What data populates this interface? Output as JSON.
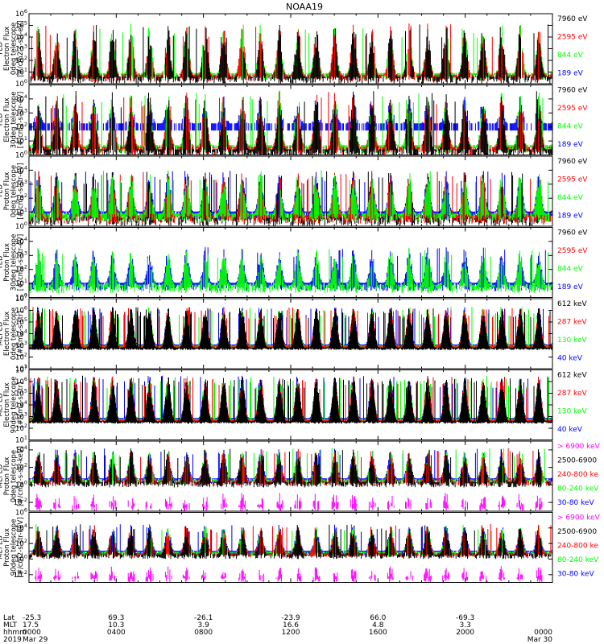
{
  "title": "NOAA19",
  "colors": {
    "black": "#000000",
    "red": "#ff0000",
    "green": "#00ff00",
    "blue": "#0000ff",
    "magenta": "#ff00ff",
    "axis": "#000000"
  },
  "chart_data": [
    {
      "type": "line",
      "panel": "ted-electron-0deg",
      "ylabel": [
        "TED",
        "Electron Flux",
        "0deg telescope",
        "[#/cm2-s-str-eV]"
      ],
      "log_scale": true,
      "ylim_exp": [
        0,
        6
      ],
      "tick_exps": [
        0,
        1,
        2,
        3,
        4,
        5,
        6
      ],
      "baseline_exp": 0.6,
      "peak_exp": 5.2,
      "dense": false,
      "series": [
        {
          "name": "7960 eV",
          "color": "black"
        },
        {
          "name": "2595 eV",
          "color": "red"
        },
        {
          "name": "844 eV",
          "color": "green"
        },
        {
          "name": "189 eV",
          "color": "blue"
        }
      ],
      "draw_order": [
        "green",
        "red",
        "black"
      ]
    },
    {
      "type": "line",
      "panel": "ted-electron-30deg",
      "ylabel": [
        "TED",
        "Electron Flux",
        "30deg telescope",
        "[#/cm2-s-str-eV]"
      ],
      "log_scale": true,
      "ylim_exp": [
        0,
        5
      ],
      "tick_exps": [
        0,
        1,
        2,
        3,
        4
      ],
      "baseline_exp": 0.4,
      "peak_exp": 4.6,
      "dense": false,
      "blue_band_exp": 2,
      "series": [
        {
          "name": "7960 eV",
          "color": "black"
        },
        {
          "name": "2595 eV",
          "color": "red"
        },
        {
          "name": "844 eV",
          "color": "green"
        },
        {
          "name": "189 eV",
          "color": "blue"
        }
      ],
      "draw_order": [
        "blue",
        "green",
        "red",
        "black"
      ]
    },
    {
      "type": "line",
      "panel": "ted-proton-0deg",
      "ylabel": [
        "TED",
        "Proton Flux",
        "0deg telescope",
        "[#/cm2-s-str-eV]"
      ],
      "log_scale": true,
      "ylim_exp": [
        0,
        5
      ],
      "tick_exps": [
        0,
        1,
        2,
        3,
        4
      ],
      "baseline_exp": 0.6,
      "peak_exp": 4.0,
      "dense": false,
      "series": [
        {
          "name": "7960 eV",
          "color": "black"
        },
        {
          "name": "2595 eV",
          "color": "red"
        },
        {
          "name": "844 eV",
          "color": "green"
        },
        {
          "name": "189 eV",
          "color": "blue"
        }
      ],
      "draw_order": [
        "blue",
        "black",
        "red",
        "green"
      ]
    },
    {
      "type": "line",
      "panel": "ted-proton-30deg",
      "ylabel": [
        "TED",
        "Proton Flux",
        "30deg telescope",
        "[#/cm2-s-str-eV]"
      ],
      "log_scale": true,
      "ylim_exp": [
        0,
        5
      ],
      "tick_exps": [
        0,
        1,
        2,
        3,
        4
      ],
      "baseline_exp": 0.6,
      "peak_exp": 3.6,
      "dense": false,
      "series": [
        {
          "name": "7960 eV",
          "color": "black"
        },
        {
          "name": "2595 eV",
          "color": "red"
        },
        {
          "name": "844 eV",
          "color": "green"
        },
        {
          "name": "189 eV",
          "color": "blue"
        }
      ],
      "draw_order": [
        "blue",
        "green"
      ]
    },
    {
      "type": "line",
      "panel": "meped-electron-0deg",
      "ylabel": [
        "MEPED",
        "Electron Flux",
        "0deg telescope",
        "[#/cm2-s-str]"
      ],
      "log_scale": true,
      "ylim_exp": [
        1,
        7
      ],
      "tick_exps": [
        1,
        2,
        3,
        4,
        5,
        6,
        7
      ],
      "baseline_exp": 2.8,
      "peak_exp": 6.3,
      "dense": true,
      "series": [
        {
          "name": "612 keV",
          "color": "black"
        },
        {
          "name": "287 keV",
          "color": "red"
        },
        {
          "name": "130 keV",
          "color": "green"
        },
        {
          "name": "40 keV",
          "color": "blue"
        }
      ],
      "draw_order": [
        "blue",
        "green",
        "red",
        "black"
      ]
    },
    {
      "type": "line",
      "panel": "meped-electron-90deg",
      "ylabel": [
        "MEPED",
        "Electron Flux",
        "90deg telescope",
        "[#/cm2-s-str]"
      ],
      "log_scale": true,
      "ylim_exp": [
        1,
        7
      ],
      "tick_exps": [
        1,
        2,
        3,
        4,
        5,
        6,
        7
      ],
      "baseline_exp": 2.6,
      "peak_exp": 6.5,
      "dense": true,
      "series": [
        {
          "name": "612 keV",
          "color": "black"
        },
        {
          "name": "287 keV",
          "color": "red"
        },
        {
          "name": "130 keV",
          "color": "green"
        },
        {
          "name": "40 keV",
          "color": "blue"
        }
      ],
      "draw_order": [
        "blue",
        "green",
        "red",
        "black"
      ]
    },
    {
      "type": "line",
      "panel": "meped-proton-0deg",
      "ylabel": [
        "MEPED",
        "Proton Flux",
        "0deg telescope",
        "[#/cm2-s-str-keV]"
      ],
      "log_scale": true,
      "ylim_exp": [
        -3,
        5
      ],
      "tick_exps": [
        -2,
        0,
        2,
        4
      ],
      "baseline_exp": 0.3,
      "peak_exp": 4.2,
      "dense": false,
      "series": [
        {
          "name": "> 6900 keV",
          "color": "magenta"
        },
        {
          "name": "2500-6900",
          "color": "black"
        },
        {
          "name": "240-800 ke",
          "color": "red"
        },
        {
          "name": "80-240 keV",
          "color": "green"
        },
        {
          "name": "30-80 keV",
          "color": "blue"
        }
      ],
      "draw_order": [
        "blue",
        "green",
        "red",
        "magenta",
        "black"
      ]
    },
    {
      "type": "line",
      "panel": "meped-proton-90deg",
      "ylabel": [
        "MEPED",
        "Proton Flux",
        "90deg telescope",
        "[#/cm2-s-str-keV]"
      ],
      "log_scale": true,
      "ylim_exp": [
        -3,
        6
      ],
      "tick_exps": [
        -2,
        0,
        2,
        4,
        6
      ],
      "baseline_exp": 0.6,
      "peak_exp": 4.5,
      "dense": false,
      "series": [
        {
          "name": "> 6900 keV",
          "color": "magenta"
        },
        {
          "name": "2500-6900",
          "color": "black"
        },
        {
          "name": "240-800 ke",
          "color": "red"
        },
        {
          "name": "80-240 keV",
          "color": "green"
        },
        {
          "name": "30-80 keV",
          "color": "blue"
        }
      ],
      "draw_order": [
        "blue",
        "green",
        "red",
        "magenta",
        "black"
      ]
    }
  ],
  "x_axis": {
    "row_labels": [
      "Lat",
      "MLT",
      "hhmm",
      "2019"
    ],
    "ticks": [
      {
        "hour": 0,
        "lat": "-25.3",
        "mlt": "17.5",
        "hhmm": "0000",
        "date": "Mar 29"
      },
      {
        "hour": 4,
        "lat": "69.3",
        "mlt": "10.3",
        "hhmm": "0400",
        "date": ""
      },
      {
        "hour": 8,
        "lat": "-26.1",
        "mlt": "3.9",
        "hhmm": "0800",
        "date": ""
      },
      {
        "hour": 12,
        "lat": "-23.9",
        "mlt": "16.6",
        "hhmm": "1200",
        "date": ""
      },
      {
        "hour": 16,
        "lat": "66.0",
        "mlt": "4.8",
        "hhmm": "1600",
        "date": ""
      },
      {
        "hour": 20,
        "lat": "-69.3",
        "mlt": "3.3",
        "hhmm": "2000",
        "date": ""
      },
      {
        "hour": 24,
        "lat": "",
        "mlt": "",
        "hhmm": "0000",
        "date": "Mar 30"
      }
    ],
    "xlim_hours": [
      0,
      24
    ]
  }
}
